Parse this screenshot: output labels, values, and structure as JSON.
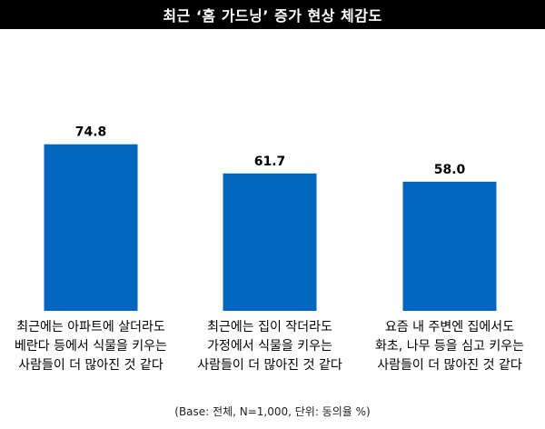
{
  "chart_data": {
    "type": "bar",
    "title": "최근 ‘홈 가드닝’ 증가 현상 체감도",
    "categories": [
      [
        "최근에는 아파트에 살더라도",
        "베란다 등에서 식물을 키우는",
        "사람들이 더 많아진 것 같다"
      ],
      [
        "최근에는 집이 작더라도",
        "가정에서 식물을 키우는",
        "사람들이 더 많아진 것 같다"
      ],
      [
        "요즘 내 주변엔 집에서도",
        "화초, 나무 등을 심고 키우는",
        "사람들이 더 많아진 것 같다"
      ]
    ],
    "values": [
      74.8,
      61.7,
      58.0
    ],
    "value_labels": [
      "74.8",
      "61.7",
      "58.0"
    ],
    "ylim": [
      0,
      100
    ],
    "grid": false,
    "bar_color": "#0066bf",
    "footnote": "(Base: 전체, N=1,000, 단위: 동의율 %)"
  }
}
